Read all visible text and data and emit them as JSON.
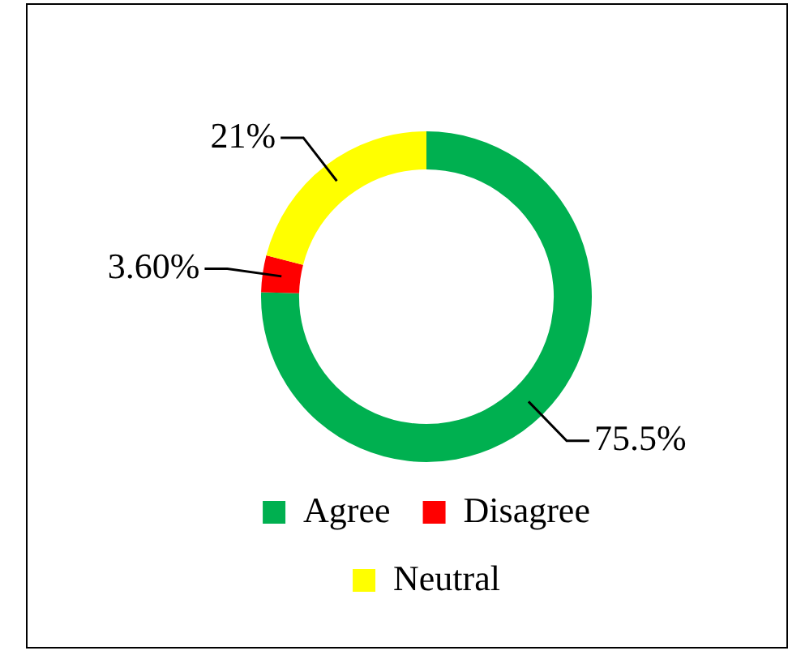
{
  "chart_data": {
    "type": "donut",
    "categories": [
      "Agree",
      "Disagree",
      "Neutral"
    ],
    "values": [
      75.5,
      3.6,
      21
    ],
    "value_labels": [
      "75.5%",
      "3.60%",
      "21%"
    ],
    "colors": [
      "#00b050",
      "#ff0000",
      "#ffff00"
    ],
    "legend": "bottom"
  }
}
